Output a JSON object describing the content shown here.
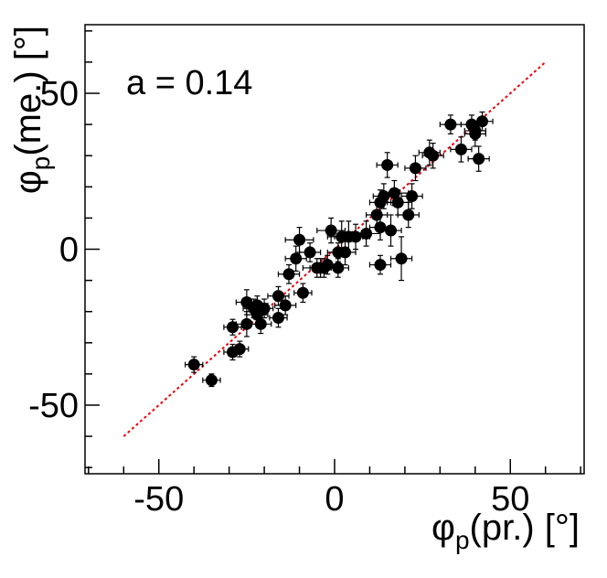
{
  "chart_data": {
    "type": "scatter",
    "title": "",
    "annotation": "a = 0.14",
    "xlabel": {
      "symbol": "φ",
      "sub": "p",
      "rest": "(pr.) [°]"
    },
    "ylabel": {
      "symbol": "φ",
      "sub": "p",
      "rest": "(me.) [°]"
    },
    "xlim": [
      -71,
      71
    ],
    "ylim": [
      -72,
      72
    ],
    "x_major_ticks": [
      -50,
      0,
      50
    ],
    "y_major_ticks": [
      -50,
      0,
      50
    ],
    "x_tick_labels": [
      "-50",
      "0",
      "50"
    ],
    "y_tick_labels": [
      "-50",
      "0",
      "50"
    ],
    "grid": false,
    "fit_line": {
      "color": "#e8000b",
      "style": "dotted",
      "x": [
        -60,
        60
      ],
      "y": [
        -60,
        60
      ]
    },
    "points": [
      {
        "x": -40,
        "y": -37,
        "ex": 2.5,
        "ey": 2.5
      },
      {
        "x": -35,
        "y": -42,
        "ex": 2.5,
        "ey": 2.0
      },
      {
        "x": -29,
        "y": -33,
        "ex": 2.5,
        "ey": 2.5
      },
      {
        "x": -29,
        "y": -25,
        "ex": 2.5,
        "ey": 2.5
      },
      {
        "x": -27,
        "y": -32,
        "ex": 2.5,
        "ey": 2.5
      },
      {
        "x": -25,
        "y": -24,
        "ex": 3.0,
        "ey": 4.0
      },
      {
        "x": -25,
        "y": -17,
        "ex": 3.0,
        "ey": 4.0
      },
      {
        "x": -23,
        "y": -19,
        "ex": 3.0,
        "ey": 3.0
      },
      {
        "x": -22,
        "y": -21,
        "ex": 3.0,
        "ey": 3.0
      },
      {
        "x": -22,
        "y": -18,
        "ex": 3.0,
        "ey": 3.0
      },
      {
        "x": -21,
        "y": -24,
        "ex": 3.0,
        "ey": 3.0
      },
      {
        "x": -20,
        "y": -19,
        "ex": 2.5,
        "ey": 3.0
      },
      {
        "x": -16,
        "y": -22,
        "ex": 2.5,
        "ey": 3.0
      },
      {
        "x": -16,
        "y": -15,
        "ex": 3.0,
        "ey": 3.0
      },
      {
        "x": -14,
        "y": -18,
        "ex": 3.0,
        "ey": 3.0
      },
      {
        "x": -13,
        "y": -8,
        "ex": 3.0,
        "ey": 3.0
      },
      {
        "x": -11,
        "y": -3,
        "ex": 3.0,
        "ey": 4.0
      },
      {
        "x": -10,
        "y": 3,
        "ex": 4.0,
        "ey": 4.0
      },
      {
        "x": -9,
        "y": -14,
        "ex": 2.5,
        "ey": 3.0
      },
      {
        "x": -7,
        "y": -1,
        "ex": 3.0,
        "ey": 3.0
      },
      {
        "x": -5,
        "y": -6,
        "ex": 4.0,
        "ey": 3.0
      },
      {
        "x": -4,
        "y": -6,
        "ex": 3.0,
        "ey": 3.0
      },
      {
        "x": -3,
        "y": -6,
        "ex": 3.0,
        "ey": 3.0
      },
      {
        "x": -2,
        "y": -5,
        "ex": 3.0,
        "ey": 3.0
      },
      {
        "x": -1,
        "y": 6,
        "ex": 4.0,
        "ey": 4.0
      },
      {
        "x": 1,
        "y": -6,
        "ex": 3.0,
        "ey": 3.0
      },
      {
        "x": 1,
        "y": -1,
        "ex": 3.0,
        "ey": 3.0
      },
      {
        "x": 2,
        "y": 4,
        "ex": 4.0,
        "ey": 5.0
      },
      {
        "x": 3,
        "y": -1,
        "ex": 3.0,
        "ey": 4.0
      },
      {
        "x": 4,
        "y": 4,
        "ex": 4.0,
        "ey": 5.0
      },
      {
        "x": 6,
        "y": 4,
        "ex": 4.0,
        "ey": 4.0
      },
      {
        "x": 9,
        "y": 5,
        "ex": 4.0,
        "ey": 4.0
      },
      {
        "x": 12,
        "y": 11,
        "ex": 3.0,
        "ey": 4.0
      },
      {
        "x": 13,
        "y": -5,
        "ex": 3.0,
        "ey": 3.0
      },
      {
        "x": 13,
        "y": 7,
        "ex": 3.0,
        "ey": 4.0
      },
      {
        "x": 13,
        "y": 15,
        "ex": 3.0,
        "ey": 4.0
      },
      {
        "x": 14,
        "y": 17,
        "ex": 3.0,
        "ey": 4.0
      },
      {
        "x": 15,
        "y": 27,
        "ex": 3.0,
        "ey": 4.0
      },
      {
        "x": 16,
        "y": 6,
        "ex": 3.0,
        "ey": 5.0
      },
      {
        "x": 17,
        "y": 18,
        "ex": 4.0,
        "ey": 4.0
      },
      {
        "x": 18,
        "y": 15,
        "ex": 3.0,
        "ey": 4.0
      },
      {
        "x": 19,
        "y": -3,
        "ex": 3.0,
        "ey": 7.0
      },
      {
        "x": 21,
        "y": 11,
        "ex": 3.0,
        "ey": 4.0
      },
      {
        "x": 22,
        "y": 17,
        "ex": 3.0,
        "ey": 4.0
      },
      {
        "x": 23,
        "y": 26,
        "ex": 3.0,
        "ey": 4.0
      },
      {
        "x": 27,
        "y": 31,
        "ex": 3.0,
        "ey": 4.0
      },
      {
        "x": 28,
        "y": 30,
        "ex": 3.0,
        "ey": 4.0
      },
      {
        "x": 33,
        "y": 40,
        "ex": 3.0,
        "ey": 3.0
      },
      {
        "x": 36,
        "y": 32,
        "ex": 3.0,
        "ey": 4.0
      },
      {
        "x": 39,
        "y": 40,
        "ex": 3.0,
        "ey": 3.0
      },
      {
        "x": 40,
        "y": 37,
        "ex": 3.0,
        "ey": 4.0
      },
      {
        "x": 40,
        "y": 38,
        "ex": 3.0,
        "ey": 3.0
      },
      {
        "x": 41,
        "y": 29,
        "ex": 3.0,
        "ey": 4.0
      },
      {
        "x": 42,
        "y": 41,
        "ex": 3.0,
        "ey": 3.0
      }
    ]
  }
}
